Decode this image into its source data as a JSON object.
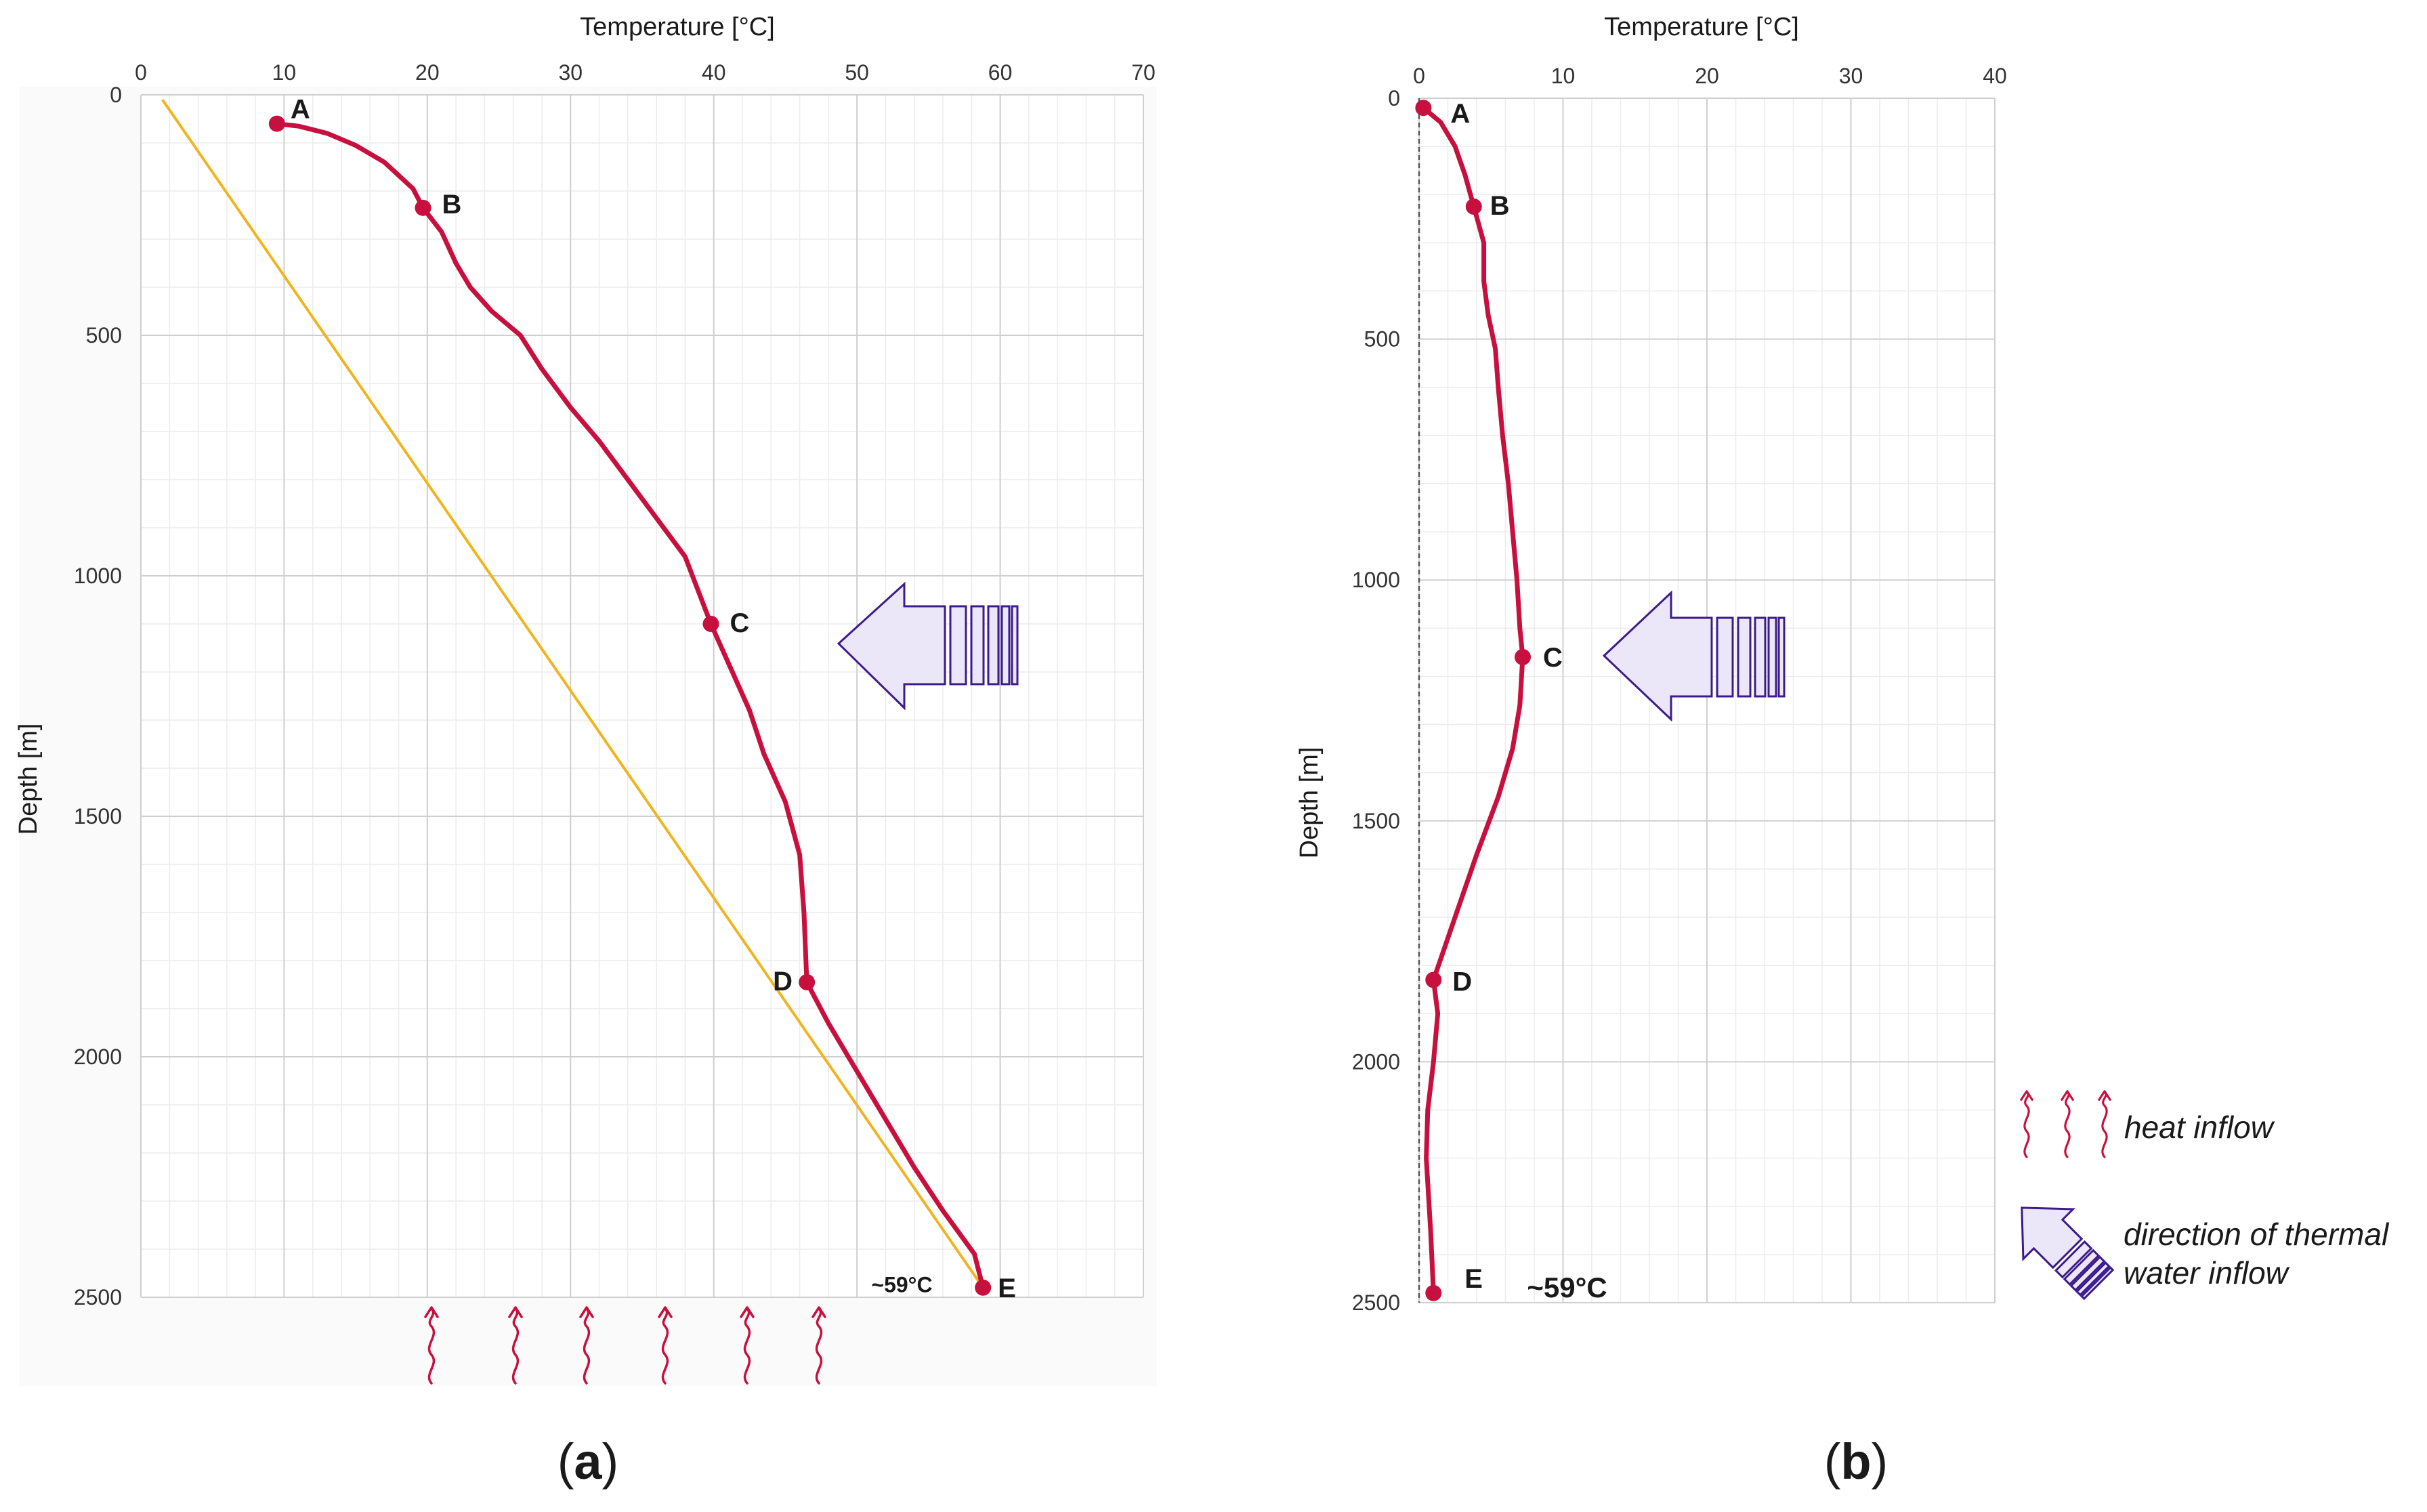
{
  "colors": {
    "profile": "#c8103e",
    "geotherm": "#f0b41e",
    "grid_major": "#cfcfcf",
    "grid_minor": "#ececec",
    "arrow_stroke": "#3c1c8c",
    "arrow_fill": "#ebe6f8",
    "heat": "#c8103e",
    "text": "#1a1a1a"
  },
  "icons": {
    "heat_inflow": "wavy-heat-arrow-icon",
    "water_inflow": "block-arrow-icon"
  },
  "legend": {
    "heat_inflow_label": "heat inflow",
    "water_inflow_line1": "direction of thermal",
    "water_inflow_line2": "water inflow"
  },
  "chart_data": [
    {
      "type": "line",
      "panel_label": "(a)",
      "panel_letter": "a",
      "xlabel": "Temperature [°C]",
      "ylabel": "Depth [m]",
      "xlim": [
        0,
        70
      ],
      "ylim": [
        0,
        2500
      ],
      "y_inverted": true,
      "x_ticks": [
        0,
        10,
        20,
        30,
        40,
        50,
        60,
        70
      ],
      "y_ticks": [
        0,
        500,
        1000,
        1500,
        2000,
        2500
      ],
      "y_tick_labels": [
        "0",
        "500",
        "1000",
        "1500",
        "2000",
        "2500"
      ],
      "series": [
        {
          "name": "temperature profile",
          "x": [
            9.5,
            11,
            13,
            15,
            17,
            19,
            19.7,
            21,
            22,
            23,
            24.5,
            26.5,
            28,
            30,
            32,
            34,
            36,
            38,
            39.8,
            41,
            42.5,
            43.5,
            45,
            46,
            46.3,
            46.5,
            48,
            50,
            52,
            54,
            56,
            58.2,
            58.8
          ],
          "y": [
            60,
            65,
            80,
            105,
            140,
            195,
            235,
            285,
            350,
            400,
            450,
            500,
            570,
            650,
            720,
            800,
            880,
            960,
            1100,
            1180,
            1280,
            1370,
            1470,
            1580,
            1700,
            1845,
            1930,
            2030,
            2130,
            2230,
            2320,
            2410,
            2480
          ]
        },
        {
          "name": "conductive geotherm",
          "x": [
            1.5,
            58.8
          ],
          "y": [
            10,
            2480
          ]
        }
      ],
      "points": [
        {
          "label": "A",
          "x": 9.5,
          "y": 60
        },
        {
          "label": "B",
          "x": 19.7,
          "y": 235
        },
        {
          "label": "C",
          "x": 39.8,
          "y": 1100
        },
        {
          "label": "D",
          "x": 46.5,
          "y": 1845
        },
        {
          "label": "E",
          "x": 58.8,
          "y": 2480
        }
      ],
      "annotations": [
        {
          "text": "~59°C",
          "x": 56.5,
          "y": 2470
        }
      ]
    },
    {
      "type": "line",
      "panel_label": "(b)",
      "panel_letter": "b",
      "xlabel": "Temperature [°C]",
      "ylabel": "Depth [m]",
      "xlim": [
        0,
        40
      ],
      "ylim": [
        0,
        2500
      ],
      "y_inverted": true,
      "x_ticks": [
        0,
        10,
        20,
        30,
        40
      ],
      "y_ticks": [
        0,
        500,
        1000,
        1500,
        2000,
        2500
      ],
      "y_tick_labels": [
        "0",
        "500",
        "1000",
        "1500",
        "2000",
        "2500"
      ],
      "series": [
        {
          "name": "temperature difference profile",
          "x": [
            0.3,
            1.5,
            2.5,
            3.2,
            3.8,
            4.5,
            4.5,
            4.8,
            5.3,
            5.5,
            5.8,
            6.2,
            6.5,
            6.8,
            7.0,
            7.2,
            7.0,
            6.5,
            5.5,
            4.0,
            2.5,
            1.0,
            1.3,
            1.0,
            0.6,
            0.5,
            0.8,
            1.0
          ],
          "y": [
            20,
            50,
            100,
            160,
            225,
            300,
            380,
            450,
            520,
            600,
            700,
            800,
            900,
            1000,
            1100,
            1160,
            1260,
            1350,
            1450,
            1570,
            1700,
            1830,
            1900,
            2000,
            2100,
            2200,
            2350,
            2480
          ]
        }
      ],
      "points": [
        {
          "label": "A",
          "x": 0.3,
          "y": 20
        },
        {
          "label": "B",
          "x": 3.8,
          "y": 225
        },
        {
          "label": "C",
          "x": 7.2,
          "y": 1160
        },
        {
          "label": "D",
          "x": 1.0,
          "y": 1830
        },
        {
          "label": "E",
          "x": 1.0,
          "y": 2480
        }
      ],
      "annotations": [
        {
          "text": "~59°C",
          "x": 7.5,
          "y": 2475
        }
      ]
    }
  ]
}
